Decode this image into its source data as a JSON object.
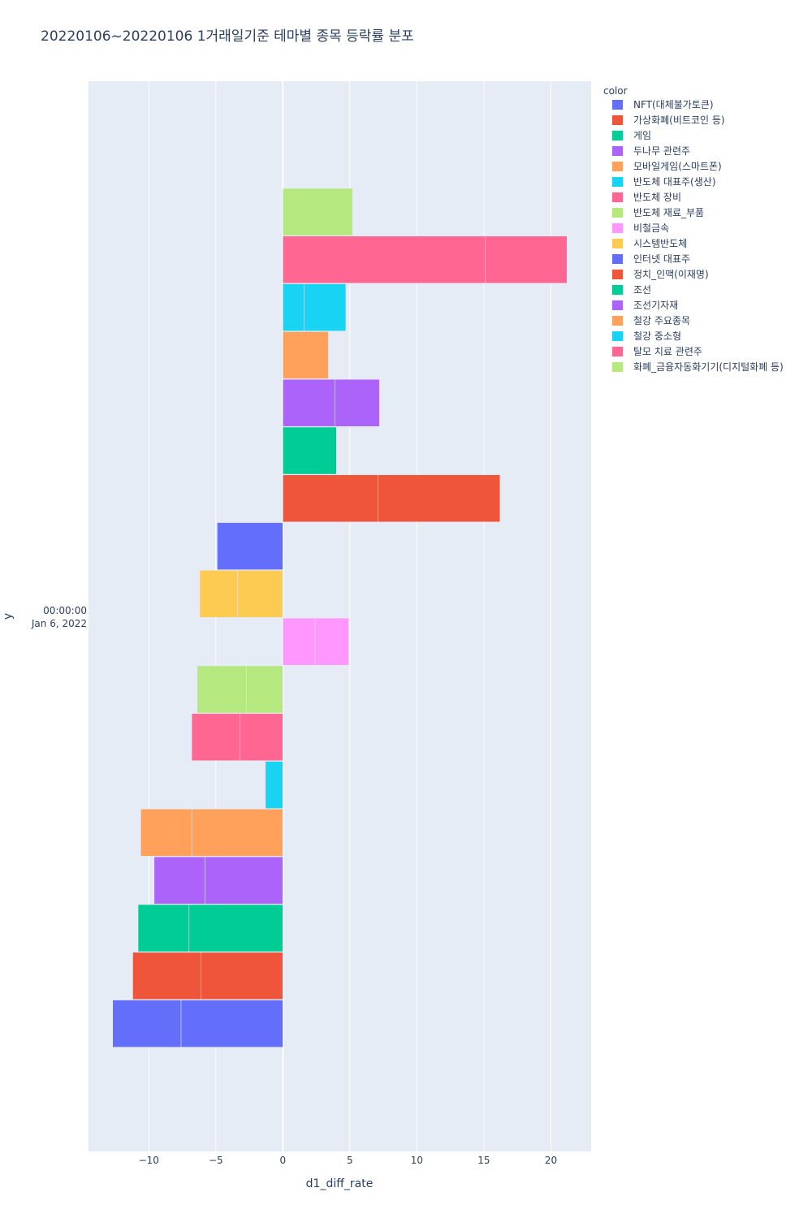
{
  "chart_data": {
    "type": "bar",
    "orientation": "horizontal",
    "barmode": "relative",
    "title": "20220106~20220106 1거래일기준 테마별 종목 등락률 분포",
    "xlabel": "d1_diff_rate",
    "ylabel": "y",
    "y_category_label": [
      "00:00:00",
      "Jan 6, 2022"
    ],
    "xlim": [
      -14.5,
      23
    ],
    "x_ticks": [
      -10,
      -5,
      0,
      5,
      10,
      15,
      20
    ],
    "x_tick_labels": [
      "−10",
      "−5",
      "0",
      "5",
      "10",
      "15",
      "20"
    ],
    "grid": true,
    "legend": {
      "title": "color",
      "placement": "right"
    },
    "series": [
      {
        "name": "NFT(대체불가토큰)",
        "color": "#636efa",
        "values": [
          -7.6,
          -5.1
        ]
      },
      {
        "name": "가상화폐(비트코인 등)",
        "color": "#EF553B",
        "values": [
          -6.1,
          -5.1
        ]
      },
      {
        "name": "게임",
        "color": "#00cc96",
        "values": [
          -7.0,
          -3.8
        ]
      },
      {
        "name": "두나무 관련주",
        "color": "#ab63fa",
        "values": [
          -5.8,
          -3.8
        ]
      },
      {
        "name": "모바일게임(스마트폰)",
        "color": "#FFA15A",
        "values": [
          -6.8,
          -3.8
        ]
      },
      {
        "name": "반도체 대표주(생산)",
        "color": "#19d3f3",
        "values": [
          -1.3
        ]
      },
      {
        "name": "반도체 장비",
        "color": "#FF6692",
        "values": [
          -3.2,
          -3.6
        ]
      },
      {
        "name": "반도체 재료_부품",
        "color": "#B6E880",
        "values": [
          -2.7,
          -3.7
        ]
      },
      {
        "name": "비철금속",
        "color": "#FF97FF",
        "values": [
          2.4,
          2.5
        ]
      },
      {
        "name": "시스템반도체",
        "color": "#FECB52",
        "values": [
          -3.4,
          -2.8
        ]
      },
      {
        "name": "인터넷 대표주",
        "color": "#636efa",
        "values": [
          -4.9
        ]
      },
      {
        "name": "정치_인맥(이재명)",
        "color": "#EF553B",
        "values": [
          7.1,
          9.1
        ]
      },
      {
        "name": "조선",
        "color": "#00cc96",
        "values": [
          4.0
        ]
      },
      {
        "name": "조선기자재",
        "color": "#ab63fa",
        "values": [
          3.9,
          3.3
        ]
      },
      {
        "name": "철강 주요종목",
        "color": "#FFA15A",
        "values": [
          3.4
        ]
      },
      {
        "name": "철강 중소형",
        "color": "#19d3f3",
        "values": [
          1.6,
          3.1
        ]
      },
      {
        "name": "탈모 치료 관련주",
        "color": "#FF6692",
        "values": [
          15.1,
          6.1
        ]
      },
      {
        "name": "화폐_금융자동화기기(디지털화폐 등)",
        "color": "#B6E880",
        "values": [
          5.2
        ]
      }
    ]
  },
  "colors": {
    "plot_background": "#E5ECF6",
    "grid": "#ffffff",
    "text": "#2a3f5f"
  }
}
